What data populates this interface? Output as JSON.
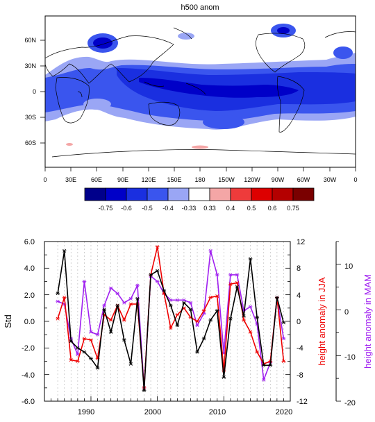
{
  "chart_data": [
    {
      "type": "heatmap",
      "title": "h500 anom",
      "lon_ticks": [
        "0",
        "30E",
        "60E",
        "90E",
        "120E",
        "150E",
        "180",
        "150W",
        "120W",
        "90W",
        "60W",
        "30W",
        "0"
      ],
      "lat_ticks": [
        "60N",
        "30N",
        "0",
        "30S",
        "60S"
      ],
      "colorbar": {
        "labels": [
          "-0.75",
          "-0.6",
          "-0.5",
          "-0.4",
          "-0.33",
          "0.33",
          "0.4",
          "0.5",
          "0.6",
          "0.75"
        ],
        "colors": [
          "#00008b",
          "#0000c8",
          "#1a2fe0",
          "#3a55ee",
          "#9aa6f5",
          "#ffffff",
          "#f4a6a6",
          "#ee3b3b",
          "#dd0000",
          "#b40000",
          "#7a0000"
        ]
      }
    },
    {
      "type": "line",
      "ylabel": "Std",
      "ylabel_right1": "height anomaly in JJA",
      "ylabel_right2": "height anomaly in MAM",
      "ylim": [
        -6,
        6
      ],
      "ylim_right1": [
        -12,
        12
      ],
      "ylim_right2": [
        -20,
        15
      ],
      "xlim": [
        1983,
        2020
      ],
      "x_ticks": [
        "1990",
        "2000",
        "2010",
        "2020"
      ],
      "yticks_left": [
        "6.0",
        "4.0",
        "2.0",
        "0.0",
        "-2.0",
        "-4.0",
        "-6.0"
      ],
      "yticks_right1": [
        "12",
        "8",
        "4",
        "0",
        "-4",
        "-8",
        "-12"
      ],
      "yticks_right2": [
        "10",
        "0",
        "-10",
        "-20"
      ],
      "colors": {
        "black": "#000000",
        "red": "#ee0000",
        "purple": "#a020f0"
      },
      "x": [
        1985,
        1986,
        1987,
        1988,
        1989,
        1990,
        1991,
        1992,
        1993,
        1994,
        1995,
        1996,
        1997,
        1998,
        1999,
        2000,
        2001,
        2002,
        2003,
        2004,
        2005,
        2006,
        2007,
        2008,
        2009,
        2010,
        2011,
        2012,
        2013,
        2014,
        2015,
        2016,
        2017,
        2018,
        2019
      ],
      "series": [
        {
          "color": "black",
          "values": [
            2.1,
            5.3,
            -1.5,
            -2.0,
            -2.3,
            -2.8,
            -3.5,
            0.9,
            -0.8,
            1.2,
            -1.4,
            -3.2,
            1.7,
            -5.2,
            3.5,
            3.8,
            2.3,
            1.2,
            -0.3,
            1.4,
            0.9,
            -2.3,
            -1.3,
            0.1,
            0.8,
            -4.2,
            0.2,
            2.6,
            0.4,
            4.7,
            0.3,
            -3.3,
            -3.3,
            1.8,
            -0.1
          ]
        },
        {
          "color": "red",
          "values": [
            0.2,
            1.8,
            -2.9,
            -3.0,
            -1.3,
            -1.4,
            -2.8,
            0.5,
            0.1,
            1.2,
            0.1,
            1.3,
            1.3,
            -5.0,
            3.5,
            5.6,
            2.1,
            -0.5,
            0.5,
            1.0,
            0.3,
            0.0,
            0.8,
            1.8,
            1.9,
            -3.7,
            2.8,
            2.9,
            0.1,
            -0.8,
            -2.3,
            -3.2,
            -3.0,
            1.8,
            -3.0
          ]
        },
        {
          "color": "purple",
          "values": [
            1.5,
            1.3,
            -1.3,
            -2.5,
            3.0,
            -0.8,
            -1.0,
            1.2,
            2.5,
            2.1,
            1.4,
            1.7,
            2.7,
            -5.0,
            3.4,
            3.0,
            2.1,
            1.6,
            1.6,
            1.6,
            1.4,
            -0.3,
            0.6,
            5.3,
            3.5,
            -2.4,
            3.5,
            3.5,
            0.8,
            1.1,
            -0.2,
            -4.4,
            -3.1,
            1.8,
            -1.3
          ]
        }
      ]
    }
  ]
}
